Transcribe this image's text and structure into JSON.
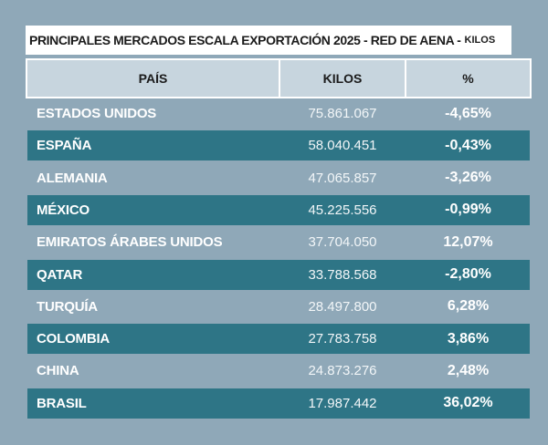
{
  "title": "PRINCIPALES MERCADOS ESCALA EXPORTACIÓN 2025 - RED DE AENA -",
  "title_unit": "KILOS",
  "table": {
    "header": [
      "PAÍS",
      "KILOS",
      "%"
    ],
    "rows": [
      [
        "ESTADOS UNIDOS",
        "75.861.067",
        "-4,65%"
      ],
      [
        "ESPAÑA",
        "58.040.451",
        "-0,43%"
      ],
      [
        "ALEMANIA",
        "47.065.857",
        "-3,26%"
      ],
      [
        "MÉXICO",
        "45.225.556",
        "-0,99%"
      ],
      [
        "EMIRATOS ÁRABES UNIDOS",
        "37.704.050",
        "12,07%"
      ],
      [
        "QATAR",
        "33.788.568",
        "-2,80%"
      ],
      [
        "TURQUÍA",
        "28.497.800",
        "6,28%"
      ],
      [
        "COLOMBIA",
        "27.783.758",
        "3,86%"
      ],
      [
        "CHINA",
        "24.873.276",
        "2,48%"
      ],
      [
        "BRASIL",
        "17.987.442",
        "36,02%"
      ]
    ]
  }
}
